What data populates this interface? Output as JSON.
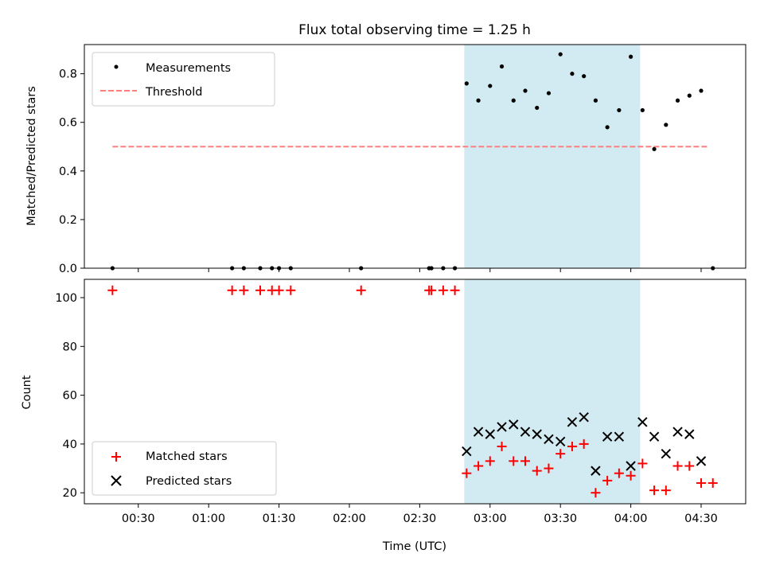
{
  "title": "Flux total observing time = 1.25 h",
  "xlabel": "Time (UTC)",
  "x_tick_labels": [
    "00:30",
    "01:00",
    "01:30",
    "02:00",
    "02:30",
    "03:00",
    "03:30",
    "04:00",
    "04:30"
  ],
  "colors": {
    "measurement": "#000000",
    "threshold": "#ff7f7f",
    "matched": "#ff0000",
    "predicted": "#000000",
    "shade": "#add8e6"
  },
  "chart_data": [
    {
      "type": "scatter",
      "ylabel": "Matched/Predicted stars",
      "xlim": [
        "00:07",
        "04:49"
      ],
      "ylim": [
        0,
        0.92
      ],
      "y_ticks": [
        "0.0",
        "0.2",
        "0.4",
        "0.6",
        "0.8"
      ],
      "y_tick_values": [
        0,
        0.2,
        0.4,
        0.6,
        0.8
      ],
      "legend": {
        "placement": "upper left",
        "entries": [
          "Measurements",
          "Threshold"
        ]
      },
      "shaded_interval": [
        "02:49",
        "04:04"
      ],
      "threshold": {
        "name": "Threshold",
        "y": 0.5,
        "x_range": [
          "00:19",
          "04:33"
        ]
      },
      "series": [
        {
          "name": "Measurements",
          "points": [
            [
              "00:19",
              0
            ],
            [
              "01:10",
              0
            ],
            [
              "01:15",
              0
            ],
            [
              "01:22",
              0
            ],
            [
              "01:27",
              0
            ],
            [
              "01:30",
              0
            ],
            [
              "01:35",
              0
            ],
            [
              "02:05",
              0
            ],
            [
              "02:34",
              0
            ],
            [
              "02:35",
              0
            ],
            [
              "02:40",
              0
            ],
            [
              "02:45",
              0
            ],
            [
              "02:50",
              0.76
            ],
            [
              "02:55",
              0.69
            ],
            [
              "03:00",
              0.75
            ],
            [
              "03:05",
              0.83
            ],
            [
              "03:10",
              0.69
            ],
            [
              "03:15",
              0.73
            ],
            [
              "03:20",
              0.66
            ],
            [
              "03:25",
              0.72
            ],
            [
              "03:30",
              0.88
            ],
            [
              "03:35",
              0.8
            ],
            [
              "03:40",
              0.79
            ],
            [
              "03:45",
              0.69
            ],
            [
              "03:50",
              0.58
            ],
            [
              "03:55",
              0.65
            ],
            [
              "04:00",
              0.87
            ],
            [
              "04:05",
              0.65
            ],
            [
              "04:10",
              0.49
            ],
            [
              "04:15",
              0.59
            ],
            [
              "04:20",
              0.69
            ],
            [
              "04:25",
              0.71
            ],
            [
              "04:30",
              0.73
            ],
            [
              "04:35",
              0
            ]
          ]
        }
      ]
    },
    {
      "type": "scatter",
      "ylabel": "Count",
      "xlabel": "Time (UTC)",
      "xlim": [
        "00:07",
        "04:49"
      ],
      "ylim": [
        15.5,
        107.5
      ],
      "y_ticks": [
        "20",
        "40",
        "60",
        "80",
        "100"
      ],
      "y_tick_values": [
        20,
        40,
        60,
        80,
        100
      ],
      "legend": {
        "placement": "lower left",
        "entries": [
          "Matched stars",
          "Predicted stars"
        ]
      },
      "shaded_interval": [
        "02:49",
        "04:04"
      ],
      "series": [
        {
          "name": "Matched stars",
          "marker": "+",
          "points": [
            [
              "00:19",
              103
            ],
            [
              "01:10",
              103
            ],
            [
              "01:15",
              103
            ],
            [
              "01:22",
              103
            ],
            [
              "01:27",
              103
            ],
            [
              "01:30",
              103
            ],
            [
              "01:35",
              103
            ],
            [
              "02:05",
              103
            ],
            [
              "02:34",
              103
            ],
            [
              "02:35",
              103
            ],
            [
              "02:40",
              103
            ],
            [
              "02:45",
              103
            ],
            [
              "02:50",
              28
            ],
            [
              "02:55",
              31
            ],
            [
              "03:00",
              33
            ],
            [
              "03:05",
              39
            ],
            [
              "03:10",
              33
            ],
            [
              "03:15",
              33
            ],
            [
              "03:20",
              29
            ],
            [
              "03:25",
              30
            ],
            [
              "03:30",
              36
            ],
            [
              "03:35",
              39
            ],
            [
              "03:40",
              40
            ],
            [
              "03:45",
              20
            ],
            [
              "03:50",
              25
            ],
            [
              "03:55",
              28
            ],
            [
              "04:00",
              27
            ],
            [
              "04:05",
              32
            ],
            [
              "04:10",
              21
            ],
            [
              "04:15",
              21
            ],
            [
              "04:20",
              31
            ],
            [
              "04:25",
              31
            ],
            [
              "04:30",
              24
            ],
            [
              "04:35",
              24
            ]
          ]
        },
        {
          "name": "Predicted stars",
          "marker": "x",
          "points": [
            [
              "02:50",
              37
            ],
            [
              "02:55",
              45
            ],
            [
              "03:00",
              44
            ],
            [
              "03:05",
              47
            ],
            [
              "03:10",
              48
            ],
            [
              "03:15",
              45
            ],
            [
              "03:20",
              44
            ],
            [
              "03:25",
              42
            ],
            [
              "03:30",
              41
            ],
            [
              "03:35",
              49
            ],
            [
              "03:40",
              51
            ],
            [
              "03:45",
              29
            ],
            [
              "03:50",
              43
            ],
            [
              "03:55",
              43
            ],
            [
              "04:00",
              31
            ],
            [
              "04:05",
              49
            ],
            [
              "04:10",
              43
            ],
            [
              "04:15",
              36
            ],
            [
              "04:20",
              45
            ],
            [
              "04:25",
              44
            ],
            [
              "04:30",
              33
            ]
          ]
        }
      ]
    }
  ]
}
